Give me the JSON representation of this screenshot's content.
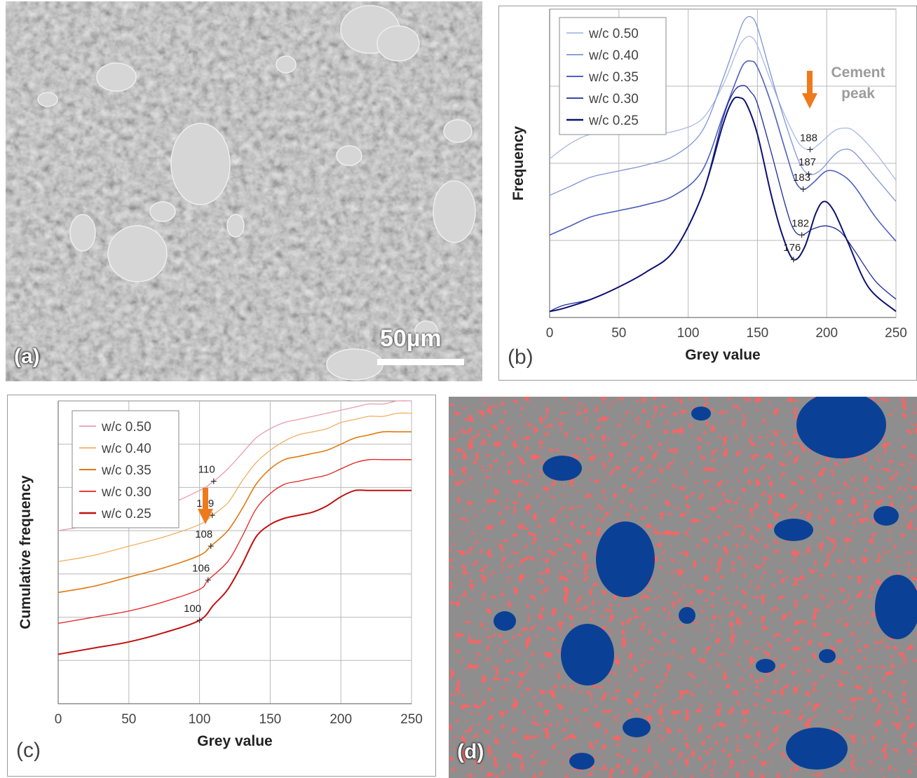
{
  "panels": {
    "a": {
      "label": "(a)",
      "scale_bar": "50µm"
    },
    "b": {
      "label": "(b)"
    },
    "c": {
      "label": "(c)"
    },
    "d": {
      "label": "(d)"
    }
  },
  "colors": {
    "arrow": "#ee7a1c",
    "phase_red": "#ee2222",
    "phase_blue": "#0a4196",
    "phase_grey": "#8e8e8e"
  },
  "chart_data": [
    {
      "type": "line",
      "panel": "b",
      "xlabel": "Grey value",
      "ylabel": "Frequency",
      "xlim": [
        0,
        250
      ],
      "xticks": [
        0,
        50,
        100,
        150,
        200,
        250
      ],
      "grid": true,
      "legend_position": "top-left",
      "annotation": "Cement peak",
      "series": [
        {
          "name": "w/c 0.50",
          "color": "#a9b9e6",
          "width": 1.3,
          "x": [
            0,
            15,
            30,
            50,
            70,
            90,
            110,
            125,
            135,
            140,
            145,
            150,
            160,
            170,
            180,
            188,
            195,
            205,
            212,
            220,
            235,
            250
          ],
          "y": [
            0.52,
            0.57,
            0.6,
            0.6,
            0.6,
            0.61,
            0.65,
            0.76,
            0.87,
            0.91,
            0.92,
            0.89,
            0.77,
            0.66,
            0.57,
            0.55,
            0.57,
            0.61,
            0.62,
            0.61,
            0.54,
            0.45
          ]
        },
        {
          "name": "w/c 0.40",
          "color": "#7f93d6",
          "width": 1.3,
          "x": [
            0,
            15,
            30,
            50,
            70,
            90,
            110,
            125,
            135,
            140,
            145,
            150,
            160,
            170,
            180,
            187,
            195,
            205,
            212,
            220,
            235,
            250
          ],
          "y": [
            0.4,
            0.43,
            0.46,
            0.48,
            0.5,
            0.53,
            0.61,
            0.78,
            0.91,
            0.97,
            0.985,
            0.95,
            0.79,
            0.64,
            0.51,
            0.47,
            0.48,
            0.53,
            0.55,
            0.54,
            0.46,
            0.38
          ]
        },
        {
          "name": "w/c 0.35",
          "color": "#4d5fc0",
          "width": 1.6,
          "x": [
            0,
            15,
            30,
            50,
            70,
            90,
            110,
            125,
            135,
            140,
            145,
            150,
            160,
            170,
            177,
            183,
            190,
            200,
            210,
            220,
            235,
            250
          ],
          "y": [
            0.27,
            0.3,
            0.33,
            0.35,
            0.37,
            0.4,
            0.48,
            0.66,
            0.78,
            0.83,
            0.84,
            0.82,
            0.7,
            0.55,
            0.45,
            0.42,
            0.44,
            0.48,
            0.47,
            0.43,
            0.33,
            0.25
          ]
        },
        {
          "name": "w/c 0.30",
          "color": "#1f2b9a",
          "width": 1.3,
          "x": [
            0,
            10,
            30,
            50,
            70,
            90,
            110,
            125,
            133,
            140,
            145,
            150,
            160,
            170,
            176,
            182,
            190,
            200,
            210,
            220,
            235,
            250
          ],
          "y": [
            0.02,
            0.04,
            0.06,
            0.1,
            0.15,
            0.22,
            0.4,
            0.65,
            0.74,
            0.76,
            0.74,
            0.7,
            0.54,
            0.37,
            0.29,
            0.27,
            0.29,
            0.3,
            0.28,
            0.22,
            0.12,
            0.06
          ]
        },
        {
          "name": "w/c 0.25",
          "color": "#0c1070",
          "width": 2.0,
          "x": [
            0,
            10,
            30,
            50,
            70,
            90,
            110,
            125,
            132,
            137,
            142,
            150,
            160,
            168,
            176,
            184,
            192,
            198,
            205,
            215,
            230,
            250
          ],
          "y": [
            0.02,
            0.03,
            0.06,
            0.1,
            0.15,
            0.22,
            0.4,
            0.63,
            0.71,
            0.72,
            0.7,
            0.6,
            0.4,
            0.27,
            0.19,
            0.23,
            0.34,
            0.38,
            0.35,
            0.25,
            0.1,
            0.02
          ]
        }
      ],
      "point_labels": [
        {
          "text": "188",
          "x": 188,
          "y": 0.55,
          "series": 0
        },
        {
          "text": "187",
          "x": 187,
          "y": 0.47,
          "series": 1
        },
        {
          "text": "183",
          "x": 183,
          "y": 0.42,
          "series": 2
        },
        {
          "text": "182",
          "x": 182,
          "y": 0.27,
          "series": 3
        },
        {
          "text": "176",
          "x": 176,
          "y": 0.19,
          "series": 4
        }
      ]
    },
    {
      "type": "line",
      "panel": "c",
      "xlabel": "Grey value",
      "ylabel": "Cumulative frequency",
      "xlim": [
        0,
        250
      ],
      "xticks": [
        0,
        50,
        100,
        150,
        200,
        250
      ],
      "grid": true,
      "legend_position": "top-left",
      "series": [
        {
          "name": "w/c 0.50",
          "color": "#e89cb0",
          "width": 1.3,
          "x": [
            0,
            25,
            50,
            75,
            100,
            110,
            120,
            130,
            140,
            150,
            160,
            170,
            180,
            190,
            200,
            210,
            220,
            230,
            240,
            250
          ],
          "y": [
            0.6,
            0.62,
            0.65,
            0.68,
            0.73,
            0.76,
            0.8,
            0.85,
            0.9,
            0.93,
            0.95,
            0.96,
            0.97,
            0.98,
            0.99,
            1.0,
            1.01,
            1.01,
            1.02,
            1.02
          ]
        },
        {
          "name": "w/c 0.40",
          "color": "#f0b060",
          "width": 1.3,
          "x": [
            0,
            25,
            50,
            75,
            100,
            109,
            120,
            130,
            140,
            150,
            160,
            170,
            180,
            190,
            200,
            210,
            220,
            230,
            240,
            250
          ],
          "y": [
            0.5,
            0.52,
            0.55,
            0.58,
            0.62,
            0.65,
            0.69,
            0.76,
            0.82,
            0.86,
            0.89,
            0.91,
            0.92,
            0.93,
            0.95,
            0.96,
            0.97,
            0.97,
            0.98,
            0.98
          ]
        },
        {
          "name": "w/c 0.35",
          "color": "#e07a10",
          "width": 1.6,
          "x": [
            0,
            25,
            50,
            75,
            100,
            108,
            120,
            130,
            140,
            150,
            160,
            170,
            180,
            190,
            200,
            210,
            220,
            230,
            240,
            250
          ],
          "y": [
            0.4,
            0.42,
            0.45,
            0.48,
            0.52,
            0.55,
            0.6,
            0.67,
            0.75,
            0.8,
            0.83,
            0.84,
            0.85,
            0.86,
            0.88,
            0.9,
            0.91,
            0.92,
            0.92,
            0.92
          ]
        },
        {
          "name": "w/c 0.30",
          "color": "#e42020",
          "width": 1.3,
          "x": [
            0,
            25,
            50,
            75,
            100,
            106,
            120,
            130,
            140,
            150,
            160,
            170,
            180,
            190,
            200,
            210,
            220,
            230,
            240,
            250
          ],
          "y": [
            0.3,
            0.32,
            0.34,
            0.37,
            0.41,
            0.44,
            0.5,
            0.58,
            0.67,
            0.72,
            0.75,
            0.76,
            0.77,
            0.78,
            0.8,
            0.82,
            0.83,
            0.83,
            0.83,
            0.83
          ]
        },
        {
          "name": "w/c 0.25",
          "color": "#c01010",
          "width": 2.0,
          "x": [
            0,
            25,
            50,
            75,
            100,
            110,
            120,
            130,
            140,
            150,
            160,
            170,
            180,
            190,
            200,
            210,
            220,
            230,
            240,
            250
          ],
          "y": [
            0.2,
            0.22,
            0.24,
            0.27,
            0.31,
            0.36,
            0.41,
            0.49,
            0.58,
            0.62,
            0.64,
            0.65,
            0.66,
            0.68,
            0.71,
            0.73,
            0.73,
            0.73,
            0.73,
            0.73
          ]
        }
      ],
      "point_labels": [
        {
          "text": "110",
          "x": 110,
          "y": 0.76,
          "series": 0
        },
        {
          "text": "109",
          "x": 109,
          "y": 0.65,
          "series": 1
        },
        {
          "text": "108",
          "x": 108,
          "y": 0.55,
          "series": 2
        },
        {
          "text": "106",
          "x": 106,
          "y": 0.44,
          "series": 3
        },
        {
          "text": "100",
          "x": 100,
          "y": 0.31,
          "series": 4
        }
      ]
    }
  ]
}
